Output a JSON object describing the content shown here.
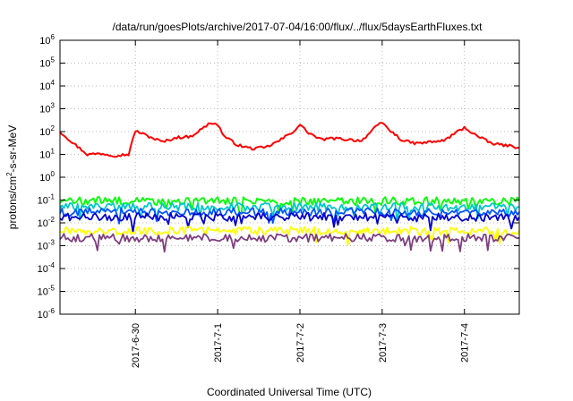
{
  "chart_data": {
    "type": "line",
    "title": "/data/run/goesPlots/archive/2017-07-04/16:00/flux/../flux/5daysEarthFluxes.txt",
    "xlabel": "Coordinated Universal Time (UTC)",
    "ylabel_parts": [
      "protons/cm",
      "2",
      "-s-sr-MeV"
    ],
    "y_scale": "log",
    "ylim_exp": [
      -6,
      6
    ],
    "y_ticks": [
      {
        "base": "10",
        "exp": "-6"
      },
      {
        "base": "10",
        "exp": "-5"
      },
      {
        "base": "10",
        "exp": "-4"
      },
      {
        "base": "10",
        "exp": "-3"
      },
      {
        "base": "10",
        "exp": "-2"
      },
      {
        "base": "10",
        "exp": "-1"
      },
      {
        "base": "10",
        "exp": "0"
      },
      {
        "base": "10",
        "exp": "1"
      },
      {
        "base": "10",
        "exp": "2"
      },
      {
        "base": "10",
        "exp": "3"
      },
      {
        "base": "10",
        "exp": "4"
      },
      {
        "base": "10",
        "exp": "5"
      },
      {
        "base": "10",
        "exp": "6"
      }
    ],
    "xlim": [
      "2017-06-29 02:00",
      "2017-07-04 16:00"
    ],
    "x_ticks": [
      "2017-6-30",
      "2017-7-1",
      "2017-7-2",
      "2017-7-3",
      "2017-7-4"
    ],
    "grid": true,
    "series": [
      {
        "color": "#ff0000",
        "x": [
          "2017-06-29 02:00",
          "2017-06-29 06:00",
          "2017-06-29 10:00",
          "2017-06-29 14:00",
          "2017-06-29 18:00",
          "2017-06-29 22:00",
          "2017-06-30 00:00",
          "2017-06-30 04:00",
          "2017-06-30 08:00",
          "2017-06-30 12:00",
          "2017-06-30 16:00",
          "2017-06-30 20:00",
          "2017-06-30 22:00",
          "2017-07-01 00:00",
          "2017-07-01 02:00",
          "2017-07-01 06:00",
          "2017-07-01 10:00",
          "2017-07-01 14:00",
          "2017-07-01 18:00",
          "2017-07-01 22:00",
          "2017-07-02 00:00",
          "2017-07-02 02:00",
          "2017-07-02 06:00",
          "2017-07-02 10:00",
          "2017-07-02 14:00",
          "2017-07-02 18:00",
          "2017-07-02 22:00",
          "2017-07-03 00:00",
          "2017-07-03 02:00",
          "2017-07-03 06:00",
          "2017-07-03 10:00",
          "2017-07-03 14:00",
          "2017-07-03 18:00",
          "2017-07-03 22:00",
          "2017-07-04 00:00",
          "2017-07-04 04:00",
          "2017-07-04 08:00",
          "2017-07-04 12:00",
          "2017-07-04 16:00"
        ],
        "y": [
          100,
          30,
          10,
          11,
          9,
          10,
          110,
          60,
          35,
          55,
          60,
          150,
          250,
          200,
          60,
          25,
          18,
          20,
          40,
          100,
          200,
          100,
          45,
          50,
          45,
          40,
          150,
          250,
          120,
          40,
          30,
          35,
          40,
          100,
          150,
          60,
          30,
          25,
          20
        ]
      },
      {
        "color": "#00ff00",
        "x": [
          "2017-06-29 02:00",
          "2017-07-04 16:00"
        ],
        "y": [
          0.09,
          0.09
        ]
      },
      {
        "color": "#00c8c8",
        "x": [
          "2017-06-29 02:00",
          "2017-07-04 16:00"
        ],
        "y": [
          0.05,
          0.05
        ]
      },
      {
        "color": "#0055ff",
        "x": [
          "2017-06-29 02:00",
          "2017-07-04 16:00"
        ],
        "y": [
          0.03,
          0.03
        ]
      },
      {
        "color": "#0000cc",
        "x": [
          "2017-06-29 02:00",
          "2017-07-04 16:00"
        ],
        "y": [
          0.018,
          0.018
        ]
      },
      {
        "color": "#ffff00",
        "x": [
          "2017-06-29 02:00",
          "2017-07-04 16:00"
        ],
        "y": [
          0.0045,
          0.0045
        ]
      },
      {
        "color": "#7f3f7f",
        "x": [
          "2017-06-29 02:00",
          "2017-07-04 16:00"
        ],
        "y": [
          0.0022,
          0.0022
        ]
      }
    ]
  }
}
